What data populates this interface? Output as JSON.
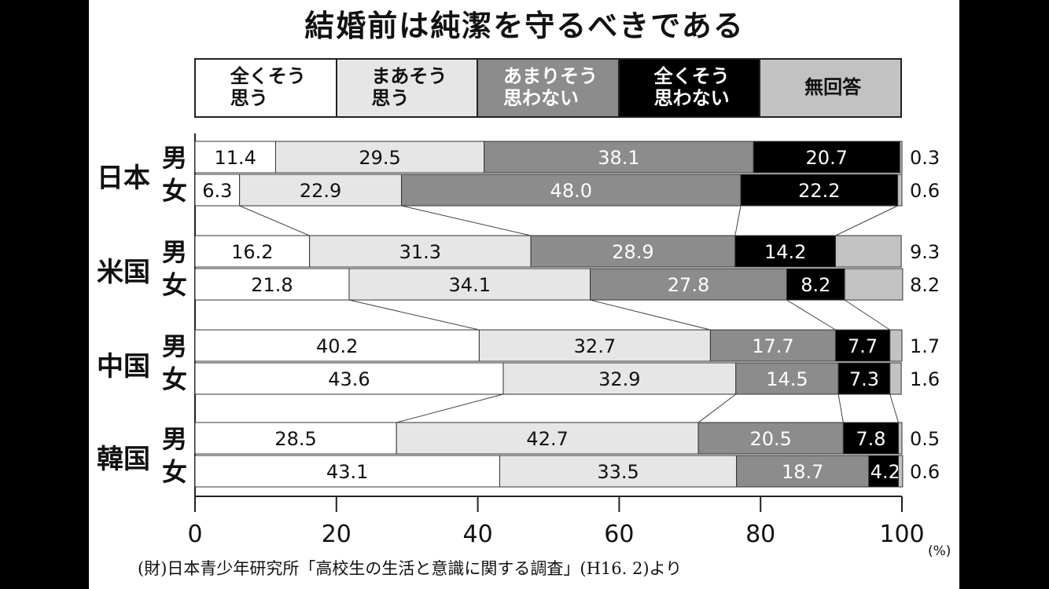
{
  "title": "結婚前は純潔を守るべきである",
  "legend": [
    {
      "label": "全くそう\n思う",
      "color": "#ffffff",
      "text_color": "#111111"
    },
    {
      "label": "まあそう\n思う",
      "color": "#e6e6e6",
      "text_color": "#111111"
    },
    {
      "label": "あまりそう\n思わない",
      "color": "#8c8c8c",
      "text_color": "#ffffff"
    },
    {
      "label": "全くそう\n思わない",
      "color": "#000000",
      "text_color": "#ffffff"
    },
    {
      "label": "無回答",
      "color": "#c2c2c2",
      "text_color": "#111111"
    }
  ],
  "chart_data": {
    "type": "bar",
    "orientation": "horizontal",
    "stacked": true,
    "title": "結婚前は純潔を守るべきである",
    "unit": "(%)",
    "xlim": [
      0,
      100
    ],
    "x_ticks": [
      "0",
      "20",
      "40",
      "60",
      "80",
      "100"
    ],
    "segments": [
      "全くそう思う",
      "まあそう思う",
      "あまりそう思わない",
      "全くそう思わない",
      "無回答"
    ],
    "groups": [
      {
        "country": "日本",
        "rows": [
          {
            "sex": "男",
            "values": [
              11.4,
              29.5,
              38.1,
              20.7,
              0.3
            ],
            "labels": [
              "11.4",
              "29.5",
              "38.1",
              "20.7",
              "0.3"
            ]
          },
          {
            "sex": "女",
            "values": [
              6.3,
              22.9,
              48.0,
              22.2,
              0.6
            ],
            "labels": [
              "6.3",
              "22.9",
              "48.0",
              "22.2",
              "0.6"
            ]
          }
        ]
      },
      {
        "country": "米国",
        "rows": [
          {
            "sex": "男",
            "values": [
              16.2,
              31.3,
              28.9,
              14.2,
              9.3
            ],
            "labels": [
              "16.2",
              "31.3",
              "28.9",
              "14.2",
              "9.3"
            ]
          },
          {
            "sex": "女",
            "values": [
              21.8,
              34.1,
              27.8,
              8.2,
              8.2
            ],
            "labels": [
              "21.8",
              "34.1",
              "27.8",
              "8.2",
              "8.2"
            ]
          }
        ]
      },
      {
        "country": "中国",
        "rows": [
          {
            "sex": "男",
            "values": [
              40.2,
              32.7,
              17.7,
              7.7,
              1.7
            ],
            "labels": [
              "40.2",
              "32.7",
              "17.7",
              "7.7",
              "1.7"
            ]
          },
          {
            "sex": "女",
            "values": [
              43.6,
              32.9,
              14.5,
              7.3,
              1.6
            ],
            "labels": [
              "43.6",
              "32.9",
              "14.5",
              "7.3",
              "1.6"
            ]
          }
        ]
      },
      {
        "country": "韓国",
        "rows": [
          {
            "sex": "男",
            "values": [
              28.5,
              42.7,
              20.5,
              7.8,
              0.5
            ],
            "labels": [
              "28.5",
              "42.7",
              "20.5",
              "7.8",
              "0.5"
            ]
          },
          {
            "sex": "女",
            "values": [
              43.1,
              33.5,
              18.7,
              4.2,
              0.6
            ],
            "labels": [
              "43.1",
              "33.5",
              "18.7",
              "4.2",
              "0.6"
            ]
          }
        ]
      }
    ]
  },
  "source": "(財)日本青少年研究所「高校生の生活と意識に関する調査」(H16. 2)より"
}
